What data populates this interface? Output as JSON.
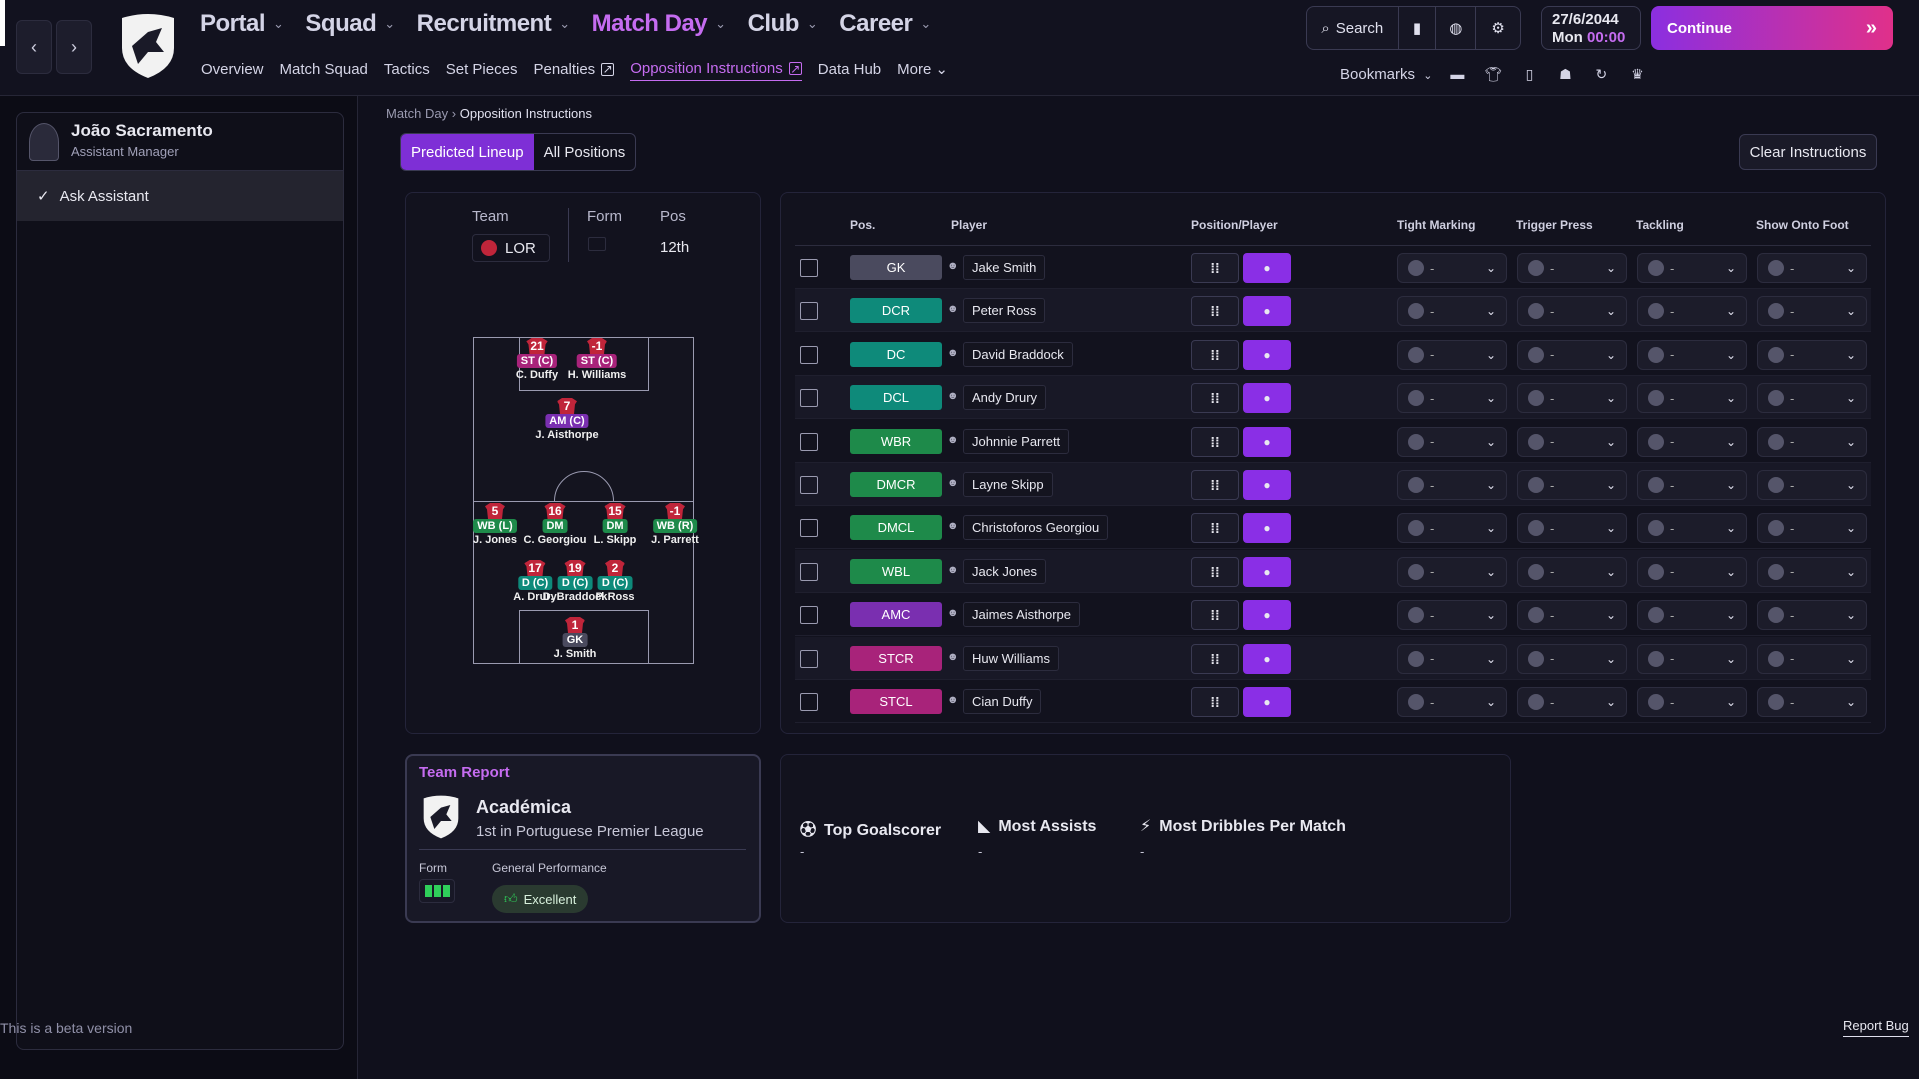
{
  "nav": {
    "main": [
      {
        "label": "Portal",
        "active": false
      },
      {
        "label": "Squad",
        "active": false
      },
      {
        "label": "Recruitment",
        "active": false
      },
      {
        "label": "Match Day",
        "active": true
      },
      {
        "label": "Club",
        "active": false
      },
      {
        "label": "Career",
        "active": false
      }
    ],
    "sub": [
      {
        "label": "Overview",
        "active": false,
        "ext": false
      },
      {
        "label": "Match Squad",
        "active": false,
        "ext": false
      },
      {
        "label": "Tactics",
        "active": false,
        "ext": false
      },
      {
        "label": "Set Pieces",
        "active": false,
        "ext": false
      },
      {
        "label": "Penalties",
        "active": false,
        "ext": true
      },
      {
        "label": "Opposition Instructions",
        "active": true,
        "ext": true
      },
      {
        "label": "Data Hub",
        "active": false,
        "ext": false
      },
      {
        "label": "More",
        "active": false,
        "ext": false
      }
    ],
    "search_label": "Search",
    "bookmarks_label": "Bookmarks",
    "date": "27/6/2044",
    "day": "Mon",
    "time": "00:00",
    "continue_label": "Continue"
  },
  "assistant": {
    "name": "João Sacramento",
    "role": "Assistant Manager",
    "ask_label": "Ask Assistant"
  },
  "beta_text": "This is a beta version",
  "report_bug": "Report Bug",
  "breadcrumb": {
    "parent": "Match Day",
    "current": "Opposition Instructions"
  },
  "segments": [
    "Predicted Lineup",
    "All Positions"
  ],
  "clear_label": "Clear Instructions",
  "team_info": {
    "team_label": "Team",
    "team_value": "LOR",
    "form_label": "Form",
    "pos_label": "Pos",
    "pos_value": "12th"
  },
  "pitch_players": [
    {
      "num": "21",
      "pos": "ST (C)",
      "name": "C. Duffy",
      "color": "#a8237a"
    },
    {
      "num": "-1",
      "pos": "ST (C)",
      "name": "H. Williams",
      "color": "#a8237a"
    },
    {
      "num": "7",
      "pos": "AM (C)",
      "name": "J. Aisthorpe",
      "color": "#7a2fb0"
    },
    {
      "num": "5",
      "pos": "WB (L)",
      "name": "J. Jones",
      "color": "#1e8a4a"
    },
    {
      "num": "16",
      "pos": "DM",
      "name": "C. Georgiou",
      "color": "#1e8a4a"
    },
    {
      "num": "15",
      "pos": "DM",
      "name": "L. Skipp",
      "color": "#1e8a4a"
    },
    {
      "num": "-1",
      "pos": "WB (R)",
      "name": "J. Parrett",
      "color": "#1e8a4a"
    },
    {
      "num": "17",
      "pos": "D (C)",
      "name": "A. Drury",
      "color": "#0e8a7a"
    },
    {
      "num": "19",
      "pos": "D (C)",
      "name": "D. Braddock",
      "color": "#0e8a7a"
    },
    {
      "num": "2",
      "pos": "D (C)",
      "name": "P. Ross",
      "color": "#0e8a7a"
    },
    {
      "num": "1",
      "pos": "GK",
      "name": "J. Smith",
      "color": "#4a4a5e"
    }
  ],
  "table": {
    "headers": [
      "Pos.",
      "Player",
      "Position/Player",
      "Tight Marking",
      "Trigger Press",
      "Tackling",
      "Show Onto Foot"
    ],
    "rows": [
      {
        "pos": "GK",
        "player": "Jake Smith",
        "color": "#4a4a5e"
      },
      {
        "pos": "DCR",
        "player": "Peter Ross",
        "color": "#0e8a7a"
      },
      {
        "pos": "DC",
        "player": "David Braddock",
        "color": "#0e8a7a"
      },
      {
        "pos": "DCL",
        "player": "Andy Drury",
        "color": "#0e8a7a"
      },
      {
        "pos": "WBR",
        "player": "Johnnie Parrett",
        "color": "#1e8a4a"
      },
      {
        "pos": "DMCR",
        "player": "Layne Skipp",
        "color": "#1e8a4a"
      },
      {
        "pos": "DMCL",
        "player": "Christoforos Georgiou",
        "color": "#1e8a4a"
      },
      {
        "pos": "WBL",
        "player": "Jack Jones",
        "color": "#1e8a4a"
      },
      {
        "pos": "AMC",
        "player": "Jaimes Aisthorpe",
        "color": "#7a2fb0"
      },
      {
        "pos": "STCR",
        "player": "Huw Williams",
        "color": "#a8237a"
      },
      {
        "pos": "STCL",
        "player": "Cian Duffy",
        "color": "#a8237a"
      }
    ],
    "dropdown_value": "-"
  },
  "report": {
    "heading": "Team Report",
    "club": "Académica",
    "standing": "1st in Portuguese Premier League",
    "form_label": "Form",
    "perf_label": "General Performance",
    "perf_value": "Excellent"
  },
  "stats": [
    {
      "label": "Top Goalscorer",
      "value": "-"
    },
    {
      "label": "Most Assists",
      "value": "-"
    },
    {
      "label": "Most Dribbles Per Match",
      "value": "-"
    }
  ]
}
